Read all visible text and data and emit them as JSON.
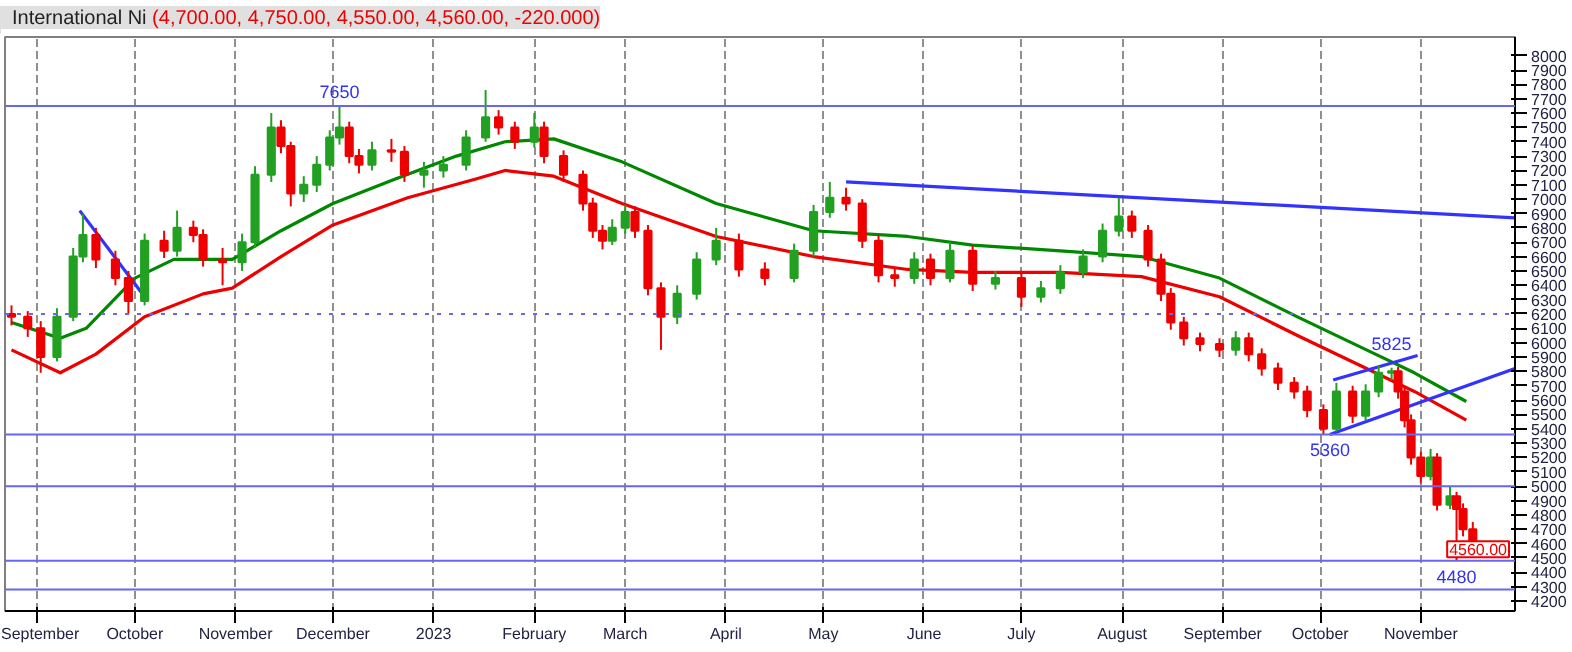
{
  "chart_data": {
    "type": "candlestick",
    "title": "International Ni",
    "subtitle": "(4,700.00, 4,750.00, 4,550.00, 4,560.00, -220.000)",
    "x": [
      "2022-08-24",
      "2022-08-29",
      "2022-09-02",
      "2022-09-07",
      "2022-09-12",
      "2022-09-15",
      "2022-09-19",
      "2022-09-25",
      "2022-09-29",
      "2022-10-04",
      "2022-10-10",
      "2022-10-14",
      "2022-10-19",
      "2022-10-22",
      "2022-10-28",
      "2022-11-03",
      "2022-11-07",
      "2022-11-12",
      "2022-11-15",
      "2022-11-18",
      "2022-11-22",
      "2022-11-26",
      "2022-11-30",
      "2022-12-03",
      "2022-12-06",
      "2022-12-09",
      "2022-12-13",
      "2022-12-19",
      "2022-12-23",
      "2022-12-29",
      "2023-01-04",
      "2023-01-11",
      "2023-01-17",
      "2023-01-21",
      "2023-01-26",
      "2023-02-01",
      "2023-02-04",
      "2023-02-10",
      "2023-02-16",
      "2023-02-19",
      "2023-02-22",
      "2023-02-25",
      "2023-03-01",
      "2023-03-04",
      "2023-03-08",
      "2023-03-12",
      "2023-03-17",
      "2023-03-23",
      "2023-03-29",
      "2023-04-05",
      "2023-04-13",
      "2023-04-22",
      "2023-04-28",
      "2023-05-03",
      "2023-05-08",
      "2023-05-13",
      "2023-05-18",
      "2023-05-23",
      "2023-05-29",
      "2023-06-03",
      "2023-06-09",
      "2023-06-16",
      "2023-06-23",
      "2023-07-01",
      "2023-07-07",
      "2023-07-13",
      "2023-07-20",
      "2023-07-26",
      "2023-07-31",
      "2023-08-04",
      "2023-08-09",
      "2023-08-13",
      "2023-08-16",
      "2023-08-20",
      "2023-08-25",
      "2023-08-31",
      "2023-09-05",
      "2023-09-09",
      "2023-09-13",
      "2023-09-18",
      "2023-09-23",
      "2023-09-27",
      "2023-10-02",
      "2023-10-06",
      "2023-10-11",
      "2023-10-15",
      "2023-10-19",
      "2023-10-23",
      "2023-10-25",
      "2023-10-27",
      "2023-10-29",
      "2023-11-01",
      "2023-11-04",
      "2023-11-06",
      "2023-11-10",
      "2023-11-12",
      "2023-11-14",
      "2023-11-17"
    ],
    "ohlc": [
      [
        6200,
        6260,
        6120,
        6180
      ],
      [
        6180,
        6220,
        6040,
        6100
      ],
      [
        6100,
        6150,
        5790,
        5900
      ],
      [
        5900,
        6240,
        5870,
        6180
      ],
      [
        6180,
        6660,
        6150,
        6600
      ],
      [
        6600,
        6900,
        6560,
        6750
      ],
      [
        6750,
        6800,
        6520,
        6580
      ],
      [
        6580,
        6640,
        6400,
        6450
      ],
      [
        6450,
        6500,
        6200,
        6290
      ],
      [
        6290,
        6760,
        6260,
        6710
      ],
      [
        6710,
        6780,
        6590,
        6640
      ],
      [
        6640,
        6920,
        6600,
        6800
      ],
      [
        6800,
        6850,
        6700,
        6750
      ],
      [
        6750,
        6790,
        6530,
        6580
      ],
      [
        6580,
        6660,
        6400,
        6560
      ],
      [
        6560,
        6760,
        6500,
        6700
      ],
      [
        6700,
        7230,
        6660,
        7170
      ],
      [
        7170,
        7600,
        7120,
        7500
      ],
      [
        7500,
        7550,
        7320,
        7370
      ],
      [
        7370,
        7400,
        6950,
        7040
      ],
      [
        7040,
        7160,
        6980,
        7100
      ],
      [
        7100,
        7300,
        7050,
        7240
      ],
      [
        7240,
        7480,
        7200,
        7430
      ],
      [
        7430,
        7650,
        7380,
        7500
      ],
      [
        7500,
        7540,
        7250,
        7300
      ],
      [
        7300,
        7350,
        7180,
        7240
      ],
      [
        7240,
        7400,
        7200,
        7340
      ],
      [
        7340,
        7420,
        7260,
        7330
      ],
      [
        7330,
        7370,
        7120,
        7170
      ],
      [
        7170,
        7260,
        7080,
        7200
      ],
      [
        7200,
        7300,
        7150,
        7240
      ],
      [
        7240,
        7480,
        7200,
        7430
      ],
      [
        7430,
        7760,
        7400,
        7570
      ],
      [
        7570,
        7620,
        7450,
        7500
      ],
      [
        7500,
        7540,
        7350,
        7400
      ],
      [
        7400,
        7600,
        7360,
        7500
      ],
      [
        7500,
        7540,
        7250,
        7300
      ],
      [
        7300,
        7340,
        7120,
        7170
      ],
      [
        7170,
        7200,
        6920,
        6970
      ],
      [
        6970,
        7010,
        6730,
        6780
      ],
      [
        6780,
        6820,
        6650,
        6710
      ],
      [
        6710,
        6860,
        6680,
        6800
      ],
      [
        6800,
        6960,
        6760,
        6910
      ],
      [
        6910,
        6950,
        6730,
        6780
      ],
      [
        6780,
        6820,
        6330,
        6380
      ],
      [
        6380,
        6420,
        5950,
        6180
      ],
      [
        6180,
        6400,
        6130,
        6340
      ],
      [
        6340,
        6630,
        6300,
        6580
      ],
      [
        6580,
        6800,
        6540,
        6710
      ],
      [
        6710,
        6760,
        6460,
        6510
      ],
      [
        6510,
        6560,
        6400,
        6450
      ],
      [
        6450,
        6690,
        6420,
        6640
      ],
      [
        6640,
        6960,
        6600,
        6910
      ],
      [
        6910,
        7120,
        6870,
        7010
      ],
      [
        7010,
        7080,
        6920,
        6970
      ],
      [
        6970,
        7000,
        6660,
        6710
      ],
      [
        6710,
        6750,
        6420,
        6470
      ],
      [
        6470,
        6520,
        6390,
        6450
      ],
      [
        6450,
        6630,
        6410,
        6580
      ],
      [
        6580,
        6620,
        6400,
        6450
      ],
      [
        6450,
        6700,
        6420,
        6640
      ],
      [
        6640,
        6680,
        6360,
        6410
      ],
      [
        6410,
        6500,
        6370,
        6450
      ],
      [
        6450,
        6480,
        6250,
        6320
      ],
      [
        6320,
        6430,
        6280,
        6380
      ],
      [
        6380,
        6540,
        6340,
        6490
      ],
      [
        6490,
        6650,
        6450,
        6600
      ],
      [
        6600,
        6830,
        6560,
        6780
      ],
      [
        6780,
        7010,
        6740,
        6880
      ],
      [
        6880,
        6920,
        6730,
        6780
      ],
      [
        6780,
        6820,
        6530,
        6580
      ],
      [
        6580,
        6620,
        6290,
        6340
      ],
      [
        6340,
        6380,
        6090,
        6140
      ],
      [
        6140,
        6180,
        5980,
        6030
      ],
      [
        6030,
        6070,
        5940,
        5990
      ],
      [
        5990,
        6030,
        5900,
        5950
      ],
      [
        5950,
        6080,
        5910,
        6030
      ],
      [
        6030,
        6070,
        5870,
        5920
      ],
      [
        5920,
        5960,
        5770,
        5820
      ],
      [
        5820,
        5860,
        5670,
        5720
      ],
      [
        5720,
        5760,
        5610,
        5660
      ],
      [
        5660,
        5700,
        5480,
        5530
      ],
      [
        5530,
        5570,
        5360,
        5400
      ],
      [
        5400,
        5720,
        5380,
        5660
      ],
      [
        5660,
        5700,
        5440,
        5490
      ],
      [
        5490,
        5710,
        5460,
        5660
      ],
      [
        5660,
        5840,
        5620,
        5790
      ],
      [
        5790,
        5825,
        5740,
        5800
      ],
      [
        5800,
        5830,
        5610,
        5660
      ],
      [
        5660,
        5690,
        5410,
        5460
      ],
      [
        5460,
        5500,
        5150,
        5200
      ],
      [
        5200,
        5240,
        5020,
        5070
      ],
      [
        5070,
        5260,
        5040,
        5200
      ],
      [
        5200,
        5230,
        4830,
        4870
      ],
      [
        4870,
        5000,
        4840,
        4930
      ],
      [
        4930,
        4960,
        4480,
        4840
      ],
      [
        4840,
        4880,
        4650,
        4700
      ],
      [
        4700,
        4750,
        4550,
        4560
      ]
    ],
    "colors": [
      "#ee0000",
      "#ee0000",
      "#ee0000",
      "#22a022",
      "#22a022",
      "#22a022",
      "#ee0000",
      "#ee0000",
      "#ee0000",
      "#22a022",
      "#ee0000",
      "#22a022",
      "#ee0000",
      "#ee0000",
      "#ee0000",
      "#22a022",
      "#22a022",
      "#22a022",
      "#ee0000",
      "#ee0000",
      "#22a022",
      "#22a022",
      "#22a022",
      "#22a022",
      "#ee0000",
      "#ee0000",
      "#22a022",
      "#ee0000",
      "#ee0000",
      "#22a022",
      "#22a022",
      "#22a022",
      "#22a022",
      "#ee0000",
      "#ee0000",
      "#22a022",
      "#ee0000",
      "#ee0000",
      "#ee0000",
      "#ee0000",
      "#ee0000",
      "#22a022",
      "#22a022",
      "#ee0000",
      "#ee0000",
      "#ee0000",
      "#22a022",
      "#22a022",
      "#22a022",
      "#ee0000",
      "#ee0000",
      "#22a022",
      "#22a022",
      "#22a022",
      "#ee0000",
      "#ee0000",
      "#ee0000",
      "#ee0000",
      "#22a022",
      "#ee0000",
      "#22a022",
      "#ee0000",
      "#22a022",
      "#ee0000",
      "#22a022",
      "#22a022",
      "#22a022",
      "#22a022",
      "#22a022",
      "#ee0000",
      "#ee0000",
      "#ee0000",
      "#ee0000",
      "#ee0000",
      "#ee0000",
      "#ee0000",
      "#22a022",
      "#ee0000",
      "#ee0000",
      "#ee0000",
      "#ee0000",
      "#ee0000",
      "#ee0000",
      "#22a022",
      "#ee0000",
      "#22a022",
      "#22a022",
      "#22a022",
      "#ee0000",
      "#ee0000",
      "#ee0000",
      "#ee0000",
      "#22a022",
      "#ee0000",
      "#22a022",
      "#ee0000",
      "#ee0000",
      "#ee0000"
    ],
    "series": [
      {
        "type": "line",
        "color": "#008800",
        "x": [
          "2022-08-24",
          "2022-09-08",
          "2022-09-16",
          "2022-10-01",
          "2022-10-13",
          "2022-10-31",
          "2022-11-15",
          "2022-12-01",
          "2022-12-19",
          "2023-01-08",
          "2023-01-23",
          "2023-02-07",
          "2023-02-28",
          "2023-03-29",
          "2023-04-28",
          "2023-05-27",
          "2023-06-16",
          "2023-07-13",
          "2023-08-07",
          "2023-08-31",
          "2023-09-24",
          "2023-10-18",
          "2023-10-30",
          "2023-11-15"
        ],
        "values": [
          6140,
          6030,
          6100,
          6450,
          6580,
          6580,
          6780,
          6970,
          7130,
          7300,
          7400,
          7420,
          7260,
          6970,
          6780,
          6740,
          6680,
          6640,
          6600,
          6450,
          6180,
          5920,
          5790,
          5590
        ]
      },
      {
        "type": "line",
        "color": "#ee0000",
        "x": [
          "2022-08-24",
          "2022-09-08",
          "2022-09-19",
          "2022-10-04",
          "2022-10-22",
          "2022-10-31",
          "2022-11-15",
          "2022-12-01",
          "2022-12-24",
          "2023-01-14",
          "2023-01-23",
          "2023-02-07",
          "2023-02-28",
          "2023-03-29",
          "2023-04-28",
          "2023-05-27",
          "2023-06-16",
          "2023-07-13",
          "2023-08-07",
          "2023-08-31",
          "2023-09-24",
          "2023-10-18",
          "2023-10-30",
          "2023-11-15"
        ],
        "values": [
          5950,
          5790,
          5920,
          6180,
          6340,
          6380,
          6600,
          6820,
          7010,
          7140,
          7200,
          7160,
          6970,
          6740,
          6600,
          6510,
          6490,
          6490,
          6460,
          6320,
          6050,
          5790,
          5660,
          5460
        ]
      },
      {
        "type": "line",
        "color": "#3333ff",
        "x": [
          "2023-05-08",
          "2023-11-30"
        ],
        "values": [
          7120,
          6870
        ]
      },
      {
        "type": "line",
        "color": "#3333ff",
        "x": [
          "2023-10-04",
          "2023-11-30"
        ],
        "values": [
          5360,
          5820
        ]
      },
      {
        "type": "line",
        "color": "#3333ff",
        "x": [
          "2023-10-05",
          "2023-10-31"
        ],
        "values": [
          5740,
          5910
        ]
      },
      {
        "type": "line",
        "color": "#3333ff",
        "x": [
          "2022-09-14",
          "2022-10-03"
        ],
        "values": [
          6920,
          6350
        ]
      }
    ],
    "ref_lines": [
      {
        "axis": "y",
        "value": 7650,
        "color": "#6666ee"
      },
      {
        "axis": "y",
        "value": 6200,
        "color": "#6666ee",
        "line_style": "dotted"
      },
      {
        "axis": "y",
        "value": 5360,
        "color": "#6666ee"
      },
      {
        "axis": "y",
        "value": 5000,
        "color": "#6666ee"
      },
      {
        "axis": "y",
        "value": 4480,
        "color": "#6666ee"
      },
      {
        "axis": "y",
        "value": 4280,
        "color": "#6666ee"
      }
    ],
    "annotations": [
      {
        "text": "7650",
        "x": "2022-12-03",
        "y": 7650
      },
      {
        "text": "5825",
        "x": "2023-10-23",
        "y": 5825
      },
      {
        "text": "5360",
        "x": "2023-10-04",
        "y": 5360
      },
      {
        "text": "4480",
        "x": "2023-11-12",
        "y": 4480
      },
      "4560.00"
    ],
    "xlim": [
      "2022-08-22",
      "2023-11-30"
    ],
    "xticks": [
      {
        "value": "2022-09-01",
        "label": "September"
      },
      {
        "value": "2022-10-01",
        "label": "October"
      },
      {
        "value": "2022-11-01",
        "label": "November"
      },
      {
        "value": "2022-12-01",
        "label": "December"
      },
      {
        "value": "2023-01-01",
        "label": "2023"
      },
      {
        "value": "2023-02-01",
        "label": "February"
      },
      {
        "value": "2023-03-01",
        "label": "March"
      },
      {
        "value": "2023-04-01",
        "label": "April"
      },
      {
        "value": "2023-05-01",
        "label": "May"
      },
      {
        "value": "2023-06-01",
        "label": "June"
      },
      {
        "value": "2023-07-01",
        "label": "July"
      },
      {
        "value": "2023-08-01",
        "label": "August"
      },
      {
        "value": "2023-09-01",
        "label": "September"
      },
      {
        "value": "2023-10-01",
        "label": "October"
      },
      {
        "value": "2023-11-01",
        "label": "November"
      }
    ],
    "ylim": [
      4130,
      8130
    ],
    "yticks": [
      4200,
      4300,
      4400,
      4500,
      4600,
      4700,
      4800,
      4900,
      5000,
      5100,
      5200,
      5300,
      5400,
      5500,
      5600,
      5700,
      5800,
      5900,
      6000,
      6100,
      6200,
      6300,
      6400,
      6500,
      6600,
      6700,
      6800,
      6900,
      7000,
      7100,
      7200,
      7300,
      7400,
      7500,
      7600,
      7700,
      7800,
      7900,
      8000
    ],
    "grid": "x"
  }
}
